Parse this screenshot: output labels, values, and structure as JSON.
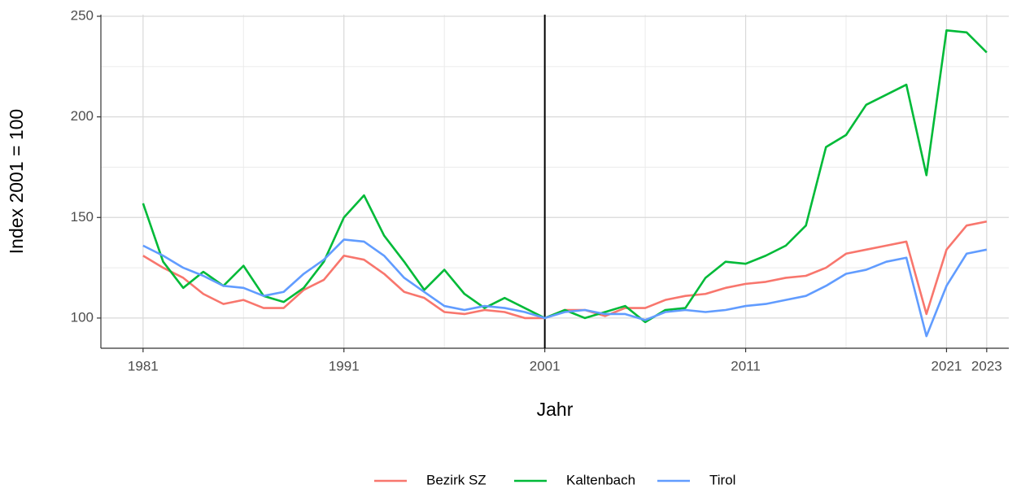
{
  "chart_data": {
    "type": "line",
    "x_label": "Jahr",
    "y_label": "Index 2001 = 100",
    "x": [
      1981,
      1982,
      1983,
      1984,
      1985,
      1986,
      1987,
      1988,
      1989,
      1990,
      1991,
      1992,
      1993,
      1994,
      1995,
      1996,
      1997,
      1998,
      1999,
      2000,
      2001,
      2002,
      2003,
      2004,
      2005,
      2006,
      2007,
      2008,
      2009,
      2010,
      2011,
      2012,
      2013,
      2014,
      2015,
      2016,
      2017,
      2018,
      2019,
      2020,
      2021,
      2022,
      2023
    ],
    "series": [
      {
        "name": "Bezirk SZ",
        "color": "#F8766D",
        "values": [
          131,
          125,
          120,
          112,
          107,
          109,
          105,
          105,
          114,
          119,
          131,
          129,
          122,
          113,
          110,
          103,
          102,
          104,
          103,
          100,
          100,
          104,
          104,
          101,
          105,
          105,
          109,
          111,
          112,
          115,
          117,
          118,
          120,
          121,
          125,
          132,
          134,
          136,
          138,
          102,
          134,
          146,
          148
        ]
      },
      {
        "name": "Kaltenbach",
        "color": "#00BA38",
        "values": [
          157,
          128,
          115,
          123,
          116,
          126,
          111,
          108,
          115,
          128,
          150,
          161,
          141,
          128,
          114,
          124,
          112,
          105,
          110,
          105,
          100,
          104,
          100,
          103,
          106,
          98,
          104,
          105,
          120,
          128,
          127,
          131,
          136,
          146,
          185,
          191,
          206,
          211,
          216,
          171,
          243,
          242,
          232
        ]
      },
      {
        "name": "Tirol",
        "color": "#619CFF",
        "values": [
          136,
          131,
          125,
          121,
          116,
          115,
          111,
          113,
          122,
          129,
          139,
          138,
          131,
          120,
          113,
          106,
          104,
          106,
          105,
          103,
          100,
          103,
          104,
          102,
          102,
          99,
          103,
          104,
          103,
          104,
          106,
          107,
          109,
          111,
          116,
          122,
          124,
          128,
          130,
          91,
          116,
          132,
          134
        ]
      }
    ],
    "xlim": [
      1978.9,
      2024.1
    ],
    "ylim": [
      85,
      250
    ],
    "xticks": [
      1981,
      1991,
      2001,
      2011,
      2021,
      2023
    ],
    "yticks": [
      100,
      150,
      200,
      250
    ],
    "minor_xticks": [
      1986,
      1996,
      2006,
      2016
    ],
    "minor_yticks": [
      125,
      175,
      225
    ],
    "vline": 2001,
    "grid": true,
    "legend": "bottom"
  }
}
